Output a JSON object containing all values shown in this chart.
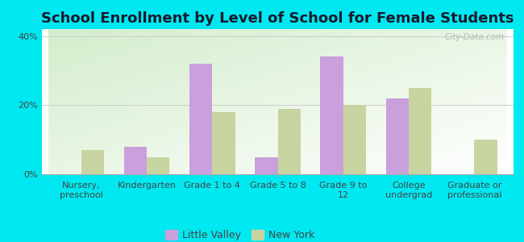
{
  "title": "School Enrollment by Level of School for Female Students",
  "categories": [
    "Nursery,\npreschool",
    "Kindergarten",
    "Grade 1 to 4",
    "Grade 5 to 8",
    "Grade 9 to\n12",
    "College\nundergrad",
    "Graduate or\nprofessional"
  ],
  "little_valley": [
    0,
    8,
    32,
    5,
    34,
    22,
    0
  ],
  "new_york": [
    7,
    5,
    18,
    19,
    20,
    25,
    10
  ],
  "color_lv": "#c9a0dc",
  "color_ny": "#c8d4a0",
  "bar_width": 0.35,
  "ylim": [
    0,
    42
  ],
  "yticks": [
    0,
    20,
    40
  ],
  "yticklabels": [
    "0%",
    "20%",
    "40%"
  ],
  "background_color": "#00e8f0",
  "legend_lv": "Little Valley",
  "legend_ny": "New York",
  "title_fontsize": 13,
  "tick_fontsize": 8,
  "legend_fontsize": 9,
  "watermark": "City-Data.com"
}
